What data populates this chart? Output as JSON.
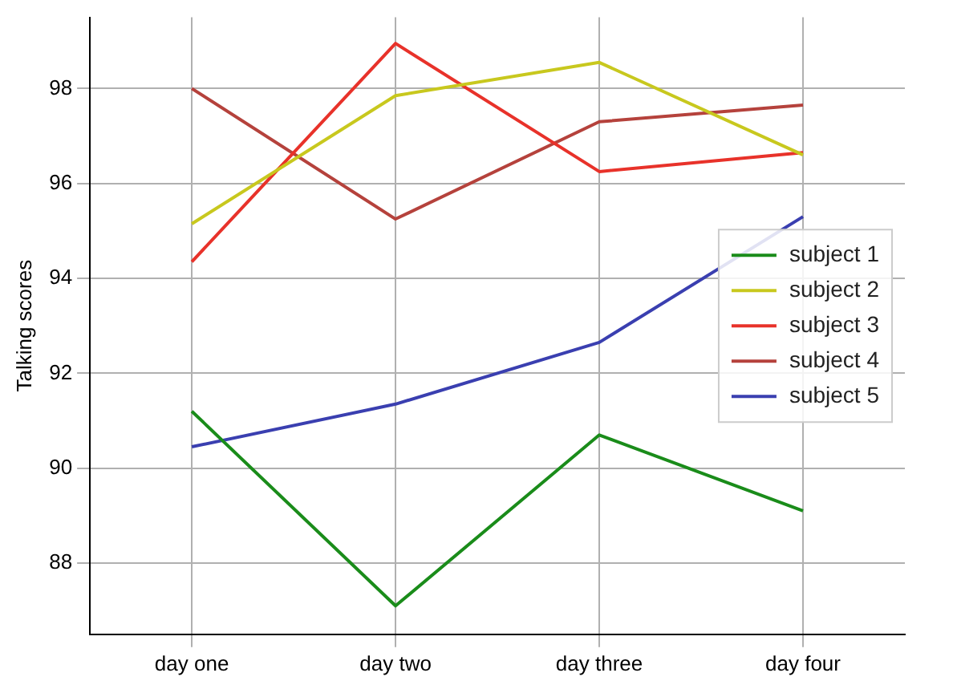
{
  "chart_data": {
    "type": "line",
    "ylabel": "Talking scores",
    "categories": [
      "day one",
      "day two",
      "day three",
      "day four"
    ],
    "series": [
      {
        "name": "subject 1",
        "color": "#1a8c1a",
        "values": [
          91.2,
          87.1,
          90.7,
          89.1
        ]
      },
      {
        "name": "subject 2",
        "color": "#c8c81e",
        "values": [
          95.15,
          97.85,
          98.55,
          96.6
        ]
      },
      {
        "name": "subject 3",
        "color": "#e8322a",
        "values": [
          94.35,
          98.95,
          96.25,
          96.65
        ]
      },
      {
        "name": "subject 4",
        "color": "#b5423c",
        "values": [
          98.0,
          95.25,
          97.3,
          97.65
        ]
      },
      {
        "name": "subject 5",
        "color": "#3a3fb0",
        "values": [
          90.45,
          91.35,
          92.65,
          95.3
        ]
      }
    ],
    "ylim": [
      86.5,
      99.5
    ],
    "yticks": [
      88,
      90,
      92,
      94,
      96,
      98
    ],
    "grid": true,
    "legend": "right",
    "marker": "none",
    "line_style": "solid"
  }
}
